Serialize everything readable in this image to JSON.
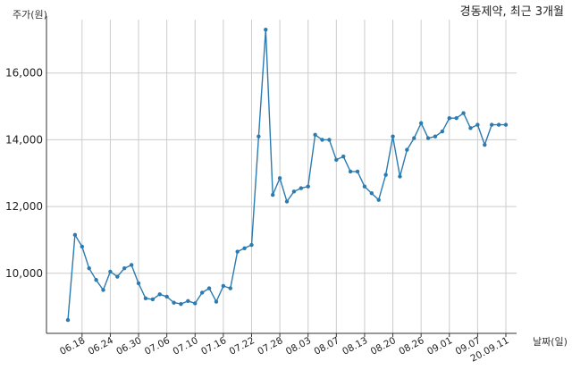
{
  "chart_data": {
    "type": "line",
    "title": "경동제약, 최근 3개월",
    "ylabel": "주가(원)",
    "xlabel": "날짜(일)",
    "ylim": [
      8200,
      17600
    ],
    "y_ticks": [
      10000,
      12000,
      14000,
      16000
    ],
    "y_tick_labels": [
      "10,000",
      "12,000",
      "14,000",
      "16,000"
    ],
    "x_tick_labels": [
      "06.18",
      "06.24",
      "06.30",
      "07.06",
      "07.10",
      "07.16",
      "07.22",
      "07.28",
      "08.03",
      "08.07",
      "08.13",
      "08.20",
      "08.26",
      "09.01",
      "09.07",
      "20.09.11"
    ],
    "x_tick_positions": [
      2,
      6,
      10,
      14,
      18,
      22,
      26,
      30,
      34,
      38,
      42,
      46,
      50,
      54,
      58,
      62
    ],
    "grid": true,
    "line_color": "#2b7bb0",
    "series": [
      {
        "values": [
          8600,
          11150,
          10800,
          10150,
          9800,
          9500,
          10050,
          9900,
          10150,
          10250,
          9700,
          9250,
          9220,
          9370,
          9300,
          9120,
          9080,
          9170,
          9100,
          9420,
          9550,
          9150,
          9620,
          9550,
          10650,
          10750,
          10850,
          14100,
          17300,
          12350,
          12850,
          12150,
          12450,
          12550,
          12600,
          14150,
          14000,
          14000,
          13400,
          13500,
          13050,
          13050,
          12600,
          12400,
          12200,
          12950,
          14100,
          12900,
          13700,
          14050,
          14500,
          14050,
          14100,
          14250,
          14650,
          14650,
          14800,
          14350,
          14450,
          13850,
          14450,
          14450,
          14450
        ]
      }
    ]
  },
  "colors": {
    "line": "#2b7bb0",
    "grid": "#cccccc",
    "axis": "#333333"
  }
}
